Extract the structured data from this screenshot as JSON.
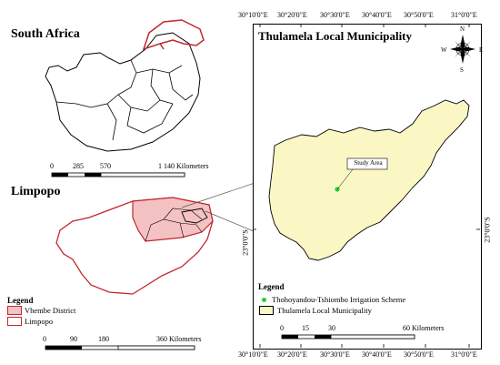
{
  "south_africa_map": {
    "title": "South Africa",
    "scale_labels": [
      "0",
      "285",
      "570",
      "1 140 Kilometers"
    ]
  },
  "limpopo_map": {
    "title": "Limpopo",
    "scale_labels": [
      "0",
      "90",
      "180",
      "360 Kilometers"
    ],
    "legend": {
      "title": "Legend",
      "items": [
        {
          "label": "Vhembe District",
          "fill": "#f4c2c2",
          "stroke": "#c0282d"
        },
        {
          "label": "Limpopo",
          "fill": "#ffffff",
          "stroke": "#c0282d"
        }
      ]
    }
  },
  "thulamela_map": {
    "title": "Thulamela Local Municipality",
    "top_coords": [
      "30°10'0\"E",
      "30°20'0\"E",
      "30°30'0\"E",
      "30°40'0\"E",
      "30°50'0\"E",
      "31°0'0\"E"
    ],
    "bottom_coords": [
      "30°10'0\"E",
      "30°20'0\"E",
      "30°30'0\"E",
      "30°40'0\"E",
      "30°50'0\"E",
      "31°0'0\"E"
    ],
    "side_coord": "23°0'0\"S",
    "study_area_label": "Study Area",
    "compass": {
      "n": "N",
      "s": "S",
      "e": "E",
      "w": "W"
    },
    "scale_labels": [
      "0",
      "15",
      "30",
      "60 Kilometers"
    ],
    "legend": {
      "title": "Legend",
      "items": [
        {
          "label": "Thohoyandou-Tshiombo Irrigation Scheme",
          "color": "#2ecc40"
        },
        {
          "label": "Thulamela Local Municipality",
          "fill": "#fbf7c4"
        }
      ]
    }
  }
}
